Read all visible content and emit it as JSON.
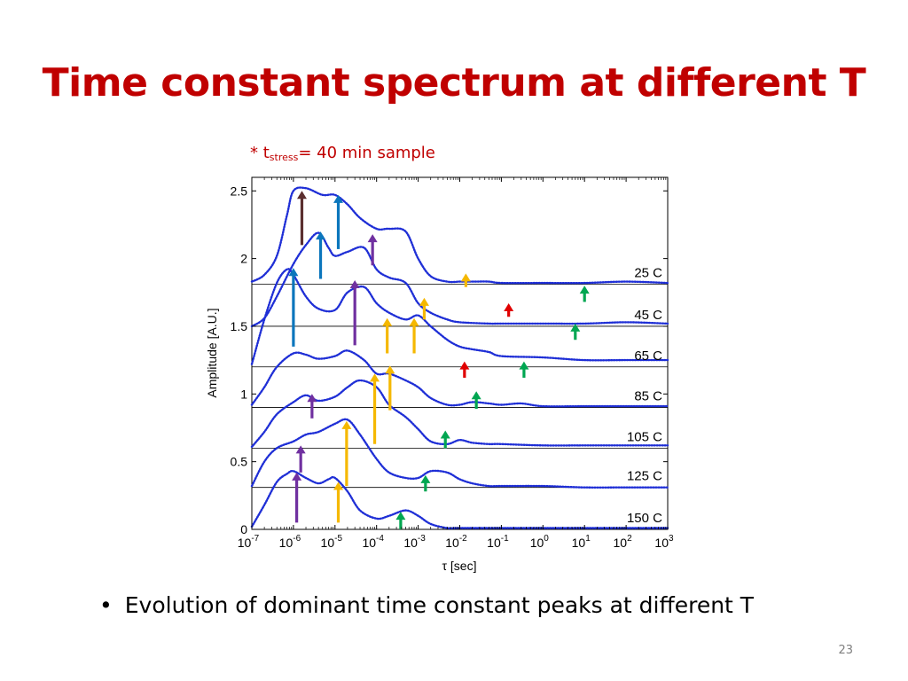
{
  "slide": {
    "title": "Time constant spectrum at different T",
    "note_prefix": "* t",
    "note_sub": "stress",
    "note_suffix": "= 40 min sample",
    "bullet": "Evolution of dominant time constant peaks at different T",
    "page_number": "23"
  },
  "chart_data": {
    "type": "line",
    "xlabel": "τ [sec]",
    "ylabel": "Amplitude [A.U.]",
    "x_scale": "log",
    "xlim": [
      1e-07,
      1000
    ],
    "ylim": [
      0,
      2.6
    ],
    "xticks": [
      {
        "base": "10",
        "exp": "-7",
        "value": 1e-07
      },
      {
        "base": "10",
        "exp": "-6",
        "value": 1e-06
      },
      {
        "base": "10",
        "exp": "-5",
        "value": 1e-05
      },
      {
        "base": "10",
        "exp": "-4",
        "value": 0.0001
      },
      {
        "base": "10",
        "exp": "-3",
        "value": 0.001
      },
      {
        "base": "10",
        "exp": "-2",
        "value": 0.01
      },
      {
        "base": "10",
        "exp": "-1",
        "value": 0.1
      },
      {
        "base": "10",
        "exp": "0",
        "value": 1
      },
      {
        "base": "10",
        "exp": "1",
        "value": 10
      },
      {
        "base": "10",
        "exp": "2",
        "value": 100
      },
      {
        "base": "10",
        "exp": "3",
        "value": 1000
      }
    ],
    "yticks": [
      {
        "label": "0",
        "value": 0
      },
      {
        "label": "0.5",
        "value": 0.5
      },
      {
        "label": "1",
        "value": 1
      },
      {
        "label": "1.5",
        "value": 1.5
      },
      {
        "label": "2",
        "value": 2
      },
      {
        "label": "2.5",
        "value": 2.5
      }
    ],
    "series_color": "#1f2fd6",
    "series": [
      {
        "name": "25 C",
        "baseline": 1.81,
        "x": [
          1e-07,
          2e-07,
          4e-07,
          7e-07,
          1e-06,
          2e-06,
          5e-06,
          1e-05,
          2e-05,
          4e-05,
          0.0001,
          0.0002,
          0.0005,
          0.001,
          0.002,
          0.005,
          0.01,
          0.02,
          0.05,
          0.1,
          1,
          10,
          100,
          1000
        ],
        "y": [
          1.83,
          1.88,
          2.02,
          2.32,
          2.5,
          2.52,
          2.47,
          2.47,
          2.4,
          2.3,
          2.22,
          2.22,
          2.2,
          2.0,
          1.87,
          1.83,
          1.83,
          1.83,
          1.83,
          1.82,
          1.82,
          1.82,
          1.83,
          1.82
        ]
      },
      {
        "name": "45 C",
        "baseline": 1.5,
        "x": [
          1e-07,
          2e-07,
          4e-07,
          1e-06,
          2e-06,
          4e-06,
          7e-06,
          1e-05,
          2e-05,
          5e-05,
          0.0001,
          0.0002,
          0.0005,
          0.001,
          0.002,
          0.005,
          0.01,
          0.05,
          0.1,
          1,
          10,
          100,
          1000
        ],
        "y": [
          1.5,
          1.56,
          1.72,
          1.96,
          2.1,
          2.19,
          2.08,
          2.02,
          2.05,
          2.08,
          1.92,
          1.86,
          1.82,
          1.67,
          1.6,
          1.55,
          1.53,
          1.52,
          1.52,
          1.52,
          1.52,
          1.53,
          1.52
        ]
      },
      {
        "name": "65 C",
        "baseline": 1.2,
        "x": [
          1e-07,
          2e-07,
          4e-07,
          7e-07,
          1e-06,
          2e-06,
          4e-06,
          1e-05,
          2e-05,
          5e-05,
          0.0001,
          0.0002,
          0.0005,
          0.001,
          0.002,
          0.005,
          0.01,
          0.02,
          0.05,
          0.1,
          1,
          10,
          100,
          1000
        ],
        "y": [
          1.22,
          1.55,
          1.82,
          1.92,
          1.88,
          1.72,
          1.63,
          1.62,
          1.75,
          1.79,
          1.67,
          1.6,
          1.55,
          1.58,
          1.5,
          1.4,
          1.35,
          1.33,
          1.31,
          1.28,
          1.27,
          1.25,
          1.25,
          1.25
        ]
      },
      {
        "name": "85 C",
        "baseline": 0.9,
        "x": [
          1e-07,
          2e-07,
          4e-07,
          1e-06,
          2e-06,
          4e-06,
          1e-05,
          2e-05,
          5e-05,
          0.0001,
          0.0002,
          0.0005,
          0.001,
          0.002,
          0.005,
          0.01,
          0.02,
          0.05,
          0.1,
          0.3,
          1,
          10,
          100,
          1000
        ],
        "y": [
          0.92,
          1.05,
          1.2,
          1.3,
          1.29,
          1.26,
          1.28,
          1.32,
          1.25,
          1.15,
          1.15,
          1.1,
          1.05,
          0.97,
          0.92,
          0.92,
          0.94,
          0.93,
          0.92,
          0.93,
          0.91,
          0.91,
          0.91,
          0.91
        ]
      },
      {
        "name": "105 C",
        "baseline": 0.6,
        "x": [
          1e-07,
          2e-07,
          4e-07,
          1e-06,
          2e-06,
          4e-06,
          1e-05,
          2e-05,
          4e-05,
          0.0001,
          0.0002,
          0.0005,
          0.001,
          0.002,
          0.005,
          0.01,
          0.02,
          0.05,
          0.1,
          1,
          10,
          100,
          1000
        ],
        "y": [
          0.61,
          0.72,
          0.85,
          0.94,
          0.99,
          0.95,
          0.98,
          1.05,
          1.1,
          1.05,
          0.92,
          0.83,
          0.74,
          0.65,
          0.63,
          0.66,
          0.64,
          0.63,
          0.63,
          0.62,
          0.62,
          0.62,
          0.62
        ]
      },
      {
        "name": "125 C",
        "baseline": 0.31,
        "x": [
          1e-07,
          2e-07,
          4e-07,
          1e-06,
          2e-06,
          4e-06,
          1e-05,
          2e-05,
          4e-05,
          0.0001,
          0.0002,
          0.0005,
          0.001,
          0.002,
          0.005,
          0.01,
          0.02,
          0.05,
          0.1,
          1,
          10,
          100,
          1000
        ],
        "y": [
          0.32,
          0.5,
          0.6,
          0.65,
          0.7,
          0.72,
          0.78,
          0.81,
          0.7,
          0.52,
          0.42,
          0.38,
          0.38,
          0.43,
          0.42,
          0.37,
          0.34,
          0.32,
          0.32,
          0.32,
          0.31,
          0.31,
          0.31
        ]
      },
      {
        "name": "150 C",
        "baseline": 0.0,
        "x": [
          1e-07,
          2e-07,
          4e-07,
          7e-07,
          1e-06,
          2e-06,
          4e-06,
          7e-06,
          1e-05,
          2e-05,
          4e-05,
          0.0001,
          0.0002,
          0.0005,
          0.001,
          0.002,
          0.005,
          0.01,
          0.1,
          1,
          10,
          100,
          1000
        ],
        "y": [
          0.02,
          0.18,
          0.35,
          0.41,
          0.43,
          0.38,
          0.34,
          0.37,
          0.38,
          0.28,
          0.14,
          0.08,
          0.1,
          0.14,
          0.1,
          0.04,
          0.01,
          0.01,
          0.01,
          0.01,
          0.01,
          0.01,
          0.01
        ]
      }
    ],
    "arrows": [
      {
        "color": "#5b2f2f",
        "x": 1.6e-06,
        "y1": 2.1,
        "y2": 2.5
      },
      {
        "color": "#0b76bc",
        "x": 4.5e-06,
        "y1": 1.85,
        "y2": 2.2
      },
      {
        "color": "#0b76bc",
        "x": 1.2e-05,
        "y1": 2.07,
        "y2": 2.47
      },
      {
        "color": "#7030a0",
        "x": 8e-05,
        "y1": 1.95,
        "y2": 2.18
      },
      {
        "color": "#0b76bc",
        "x": 1e-06,
        "y1": 1.35,
        "y2": 1.93
      },
      {
        "color": "#7030a0",
        "x": 3e-05,
        "y1": 1.36,
        "y2": 1.84
      },
      {
        "color": "#f5b800",
        "x": 0.0014,
        "y1": 1.55,
        "y2": 1.71
      },
      {
        "color": "#f5b800",
        "x": 0.0008,
        "y1": 1.3,
        "y2": 1.56
      },
      {
        "color": "#f5b800",
        "x": 0.014,
        "y1": 1.79,
        "y2": 1.89
      },
      {
        "color": "#00a651",
        "x": 10,
        "y1": 1.68,
        "y2": 1.8
      },
      {
        "color": "#00a651",
        "x": 6,
        "y1": 1.4,
        "y2": 1.52
      },
      {
        "color": "#e00000",
        "x": 0.15,
        "y1": 1.57,
        "y2": 1.67
      },
      {
        "color": "#f5b800",
        "x": 0.00018,
        "y1": 1.3,
        "y2": 1.56
      },
      {
        "color": "#e00000",
        "x": 0.013,
        "y1": 1.12,
        "y2": 1.24
      },
      {
        "color": "#00a651",
        "x": 0.35,
        "y1": 1.12,
        "y2": 1.24
      },
      {
        "color": "#f5b800",
        "x": 9e-05,
        "y1": 0.63,
        "y2": 1.15
      },
      {
        "color": "#f5b800",
        "x": 0.00021,
        "y1": 0.88,
        "y2": 1.21
      },
      {
        "color": "#7030a0",
        "x": 2.8e-06,
        "y1": 0.82,
        "y2": 1.0
      },
      {
        "color": "#00a651",
        "x": 0.025,
        "y1": 0.89,
        "y2": 1.02
      },
      {
        "color": "#7030a0",
        "x": 1.5e-06,
        "y1": 0.42,
        "y2": 0.62
      },
      {
        "color": "#f5b800",
        "x": 1.9e-05,
        "y1": 0.32,
        "y2": 0.8
      },
      {
        "color": "#00a651",
        "x": 0.0045,
        "y1": 0.6,
        "y2": 0.73
      },
      {
        "color": "#7030a0",
        "x": 1.2e-06,
        "y1": 0.05,
        "y2": 0.42
      },
      {
        "color": "#f5b800",
        "x": 1.2e-05,
        "y1": 0.05,
        "y2": 0.35
      },
      {
        "color": "#00a651",
        "x": 0.0015,
        "y1": 0.28,
        "y2": 0.4
      },
      {
        "color": "#00a651",
        "x": 0.00038,
        "y1": 0.0,
        "y2": 0.13
      }
    ]
  }
}
